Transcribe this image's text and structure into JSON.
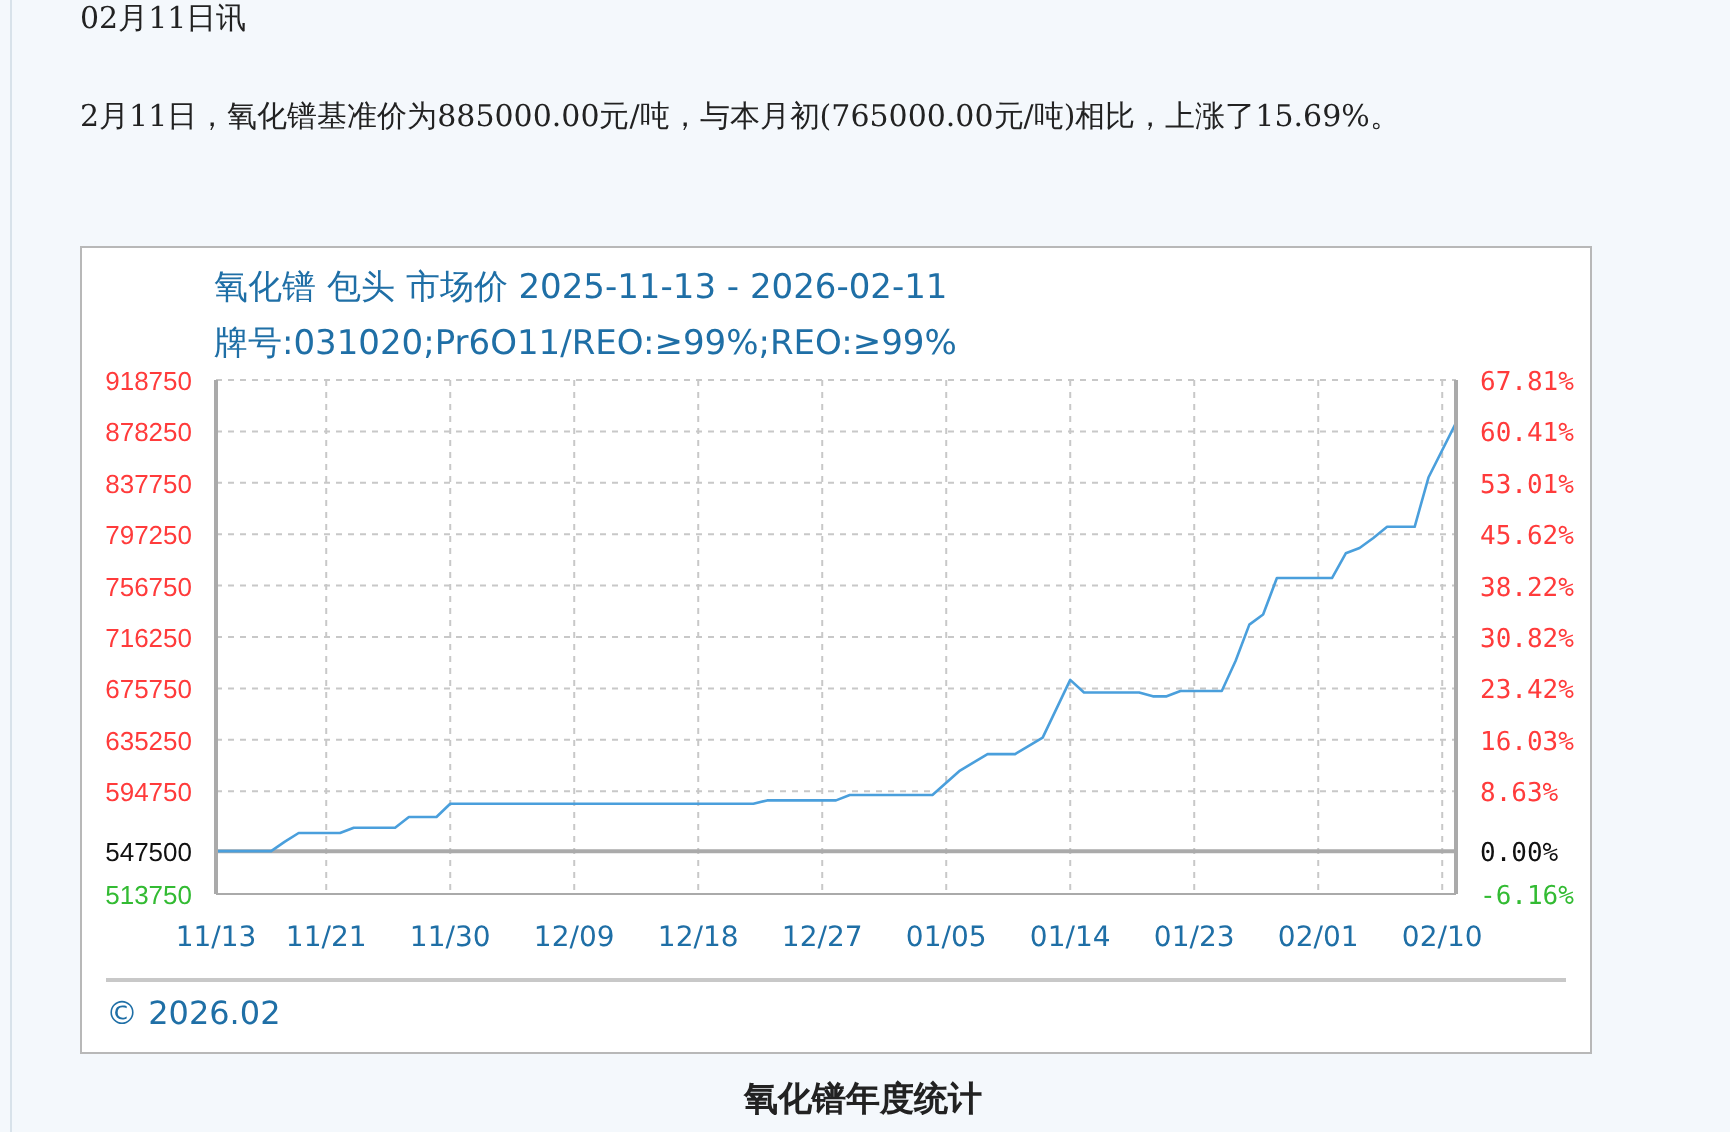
{
  "chart_data": {
    "type": "line",
    "title": "氧化镨 包头 市场价 2025-11-13 - 2026-02-11",
    "subtitle": "牌号:031020;Pr6O11/REO:≥99%;REO:≥99%",
    "annotations": [
      "02月11日讯",
      "2月11日，氧化镨基准价为885000.00元/吨，与本月初(765000.00元/吨)相比，上涨了15.69%。",
      "© 2026.02",
      "氧化镨年度统计"
    ],
    "x": [
      "2025-11-13",
      "2025-11-17",
      "2025-11-18",
      "2025-11-19",
      "2025-11-22",
      "2025-11-23",
      "2025-11-26",
      "2025-11-27",
      "2025-11-29",
      "2025-11-30",
      "2025-12-22",
      "2025-12-23",
      "2025-12-28",
      "2025-12-29",
      "2026-01-04",
      "2026-01-06",
      "2026-01-08",
      "2026-01-10",
      "2026-01-12",
      "2026-01-14",
      "2026-01-15",
      "2026-01-19",
      "2026-01-20",
      "2026-01-21",
      "2026-01-22",
      "2026-01-25",
      "2026-01-26",
      "2026-01-27",
      "2026-01-28",
      "2026-01-29",
      "2026-02-02",
      "2026-02-03",
      "2026-02-04",
      "2026-02-05",
      "2026-02-06",
      "2026-02-08",
      "2026-02-09",
      "2026-02-11"
    ],
    "series": [
      {
        "color": "#4a9fdc",
        "values": [
          547500,
          547500,
          555000,
          561800,
          561800,
          566000,
          566000,
          574400,
          574400,
          584900,
          584900,
          587500,
          587500,
          591700,
          591700,
          611000,
          624000,
          624000,
          637000,
          682500,
          672500,
          672500,
          669500,
          669500,
          673700,
          673700,
          697400,
          726000,
          734000,
          762700,
          762700,
          782200,
          786400,
          794300,
          803100,
          803100,
          841900,
          885000
        ]
      }
    ],
    "xlim": [
      "2025-11-13",
      "2026-02-11"
    ],
    "xticks": [
      {
        "value": "2025-11-13",
        "label": "11/13"
      },
      {
        "value": "2025-11-21",
        "label": "11/21"
      },
      {
        "value": "2025-11-30",
        "label": "11/30"
      },
      {
        "value": "2025-12-09",
        "label": "12/09"
      },
      {
        "value": "2025-12-18",
        "label": "12/18"
      },
      {
        "value": "2025-12-27",
        "label": "12/27"
      },
      {
        "value": "2026-01-05",
        "label": "01/05"
      },
      {
        "value": "2026-01-14",
        "label": "01/14"
      },
      {
        "value": "2026-01-23",
        "label": "01/23"
      },
      {
        "value": "2026-02-01",
        "label": "02/01"
      },
      {
        "value": "2026-02-10",
        "label": "02/10"
      }
    ],
    "ylim": [
      513750,
      918750
    ],
    "yticks": [
      513750,
      547500,
      594750,
      635250,
      675750,
      716250,
      756750,
      797250,
      837750,
      878250,
      918750
    ],
    "y2lim": [
      -6.16,
      67.81
    ],
    "y2ticks": [
      {
        "value": -6.16,
        "label": "-6.16%"
      },
      {
        "value": 0,
        "label": "0.00%"
      },
      {
        "value": 8.63,
        "label": "8.63%"
      },
      {
        "value": 16.03,
        "label": "16.03%"
      },
      {
        "value": 23.42,
        "label": "23.42%"
      },
      {
        "value": 30.82,
        "label": "30.82%"
      },
      {
        "value": 38.22,
        "label": "38.22%"
      },
      {
        "value": 45.62,
        "label": "45.62%"
      },
      {
        "value": 53.01,
        "label": "53.01%"
      },
      {
        "value": 60.41,
        "label": "60.41%"
      },
      {
        "value": 67.81,
        "label": "67.81%"
      }
    ],
    "ref_lines": [
      {
        "axis": "y2",
        "value": 0,
        "color": "#aaaaaa"
      }
    ],
    "grid": true
  }
}
